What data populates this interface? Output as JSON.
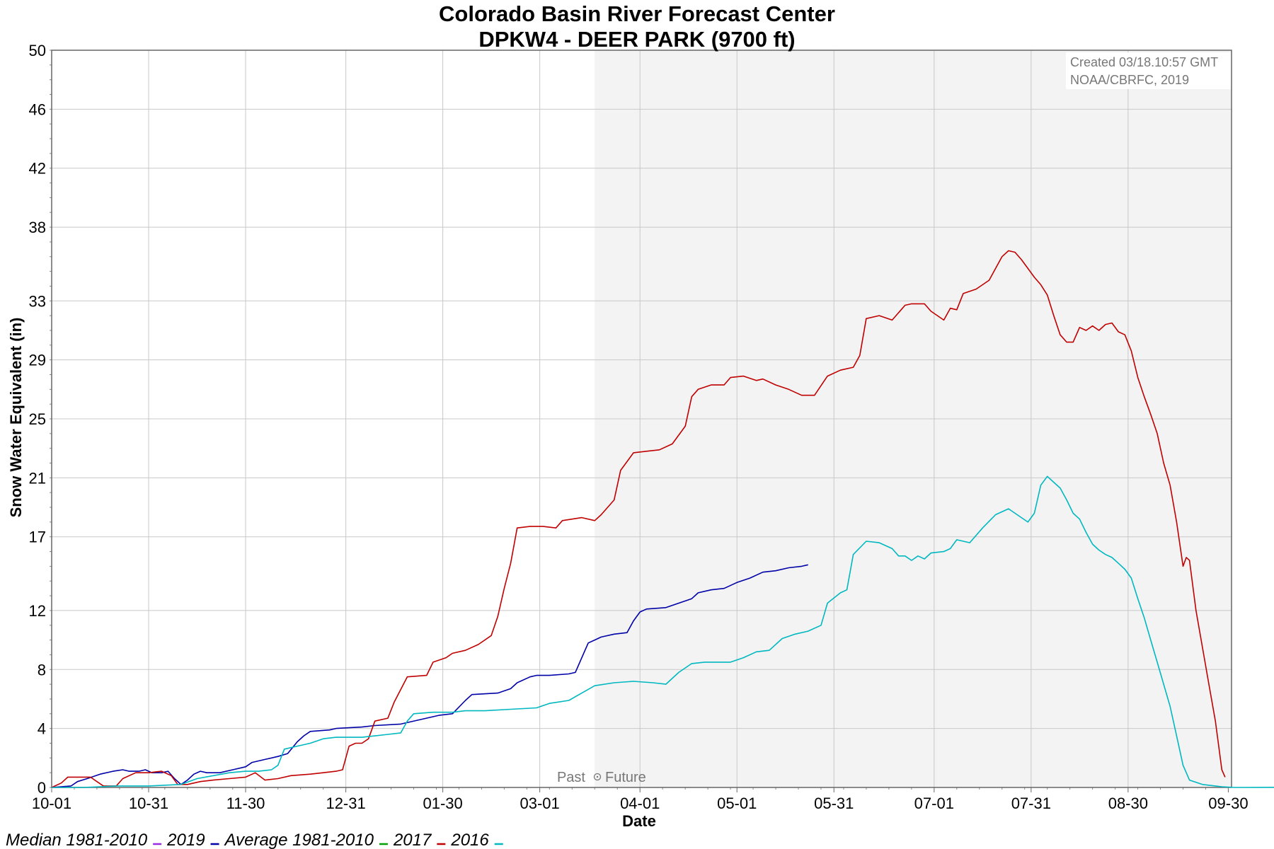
{
  "chart_data": {
    "type": "line",
    "title": "Colorado Basin River Forecast Center",
    "subtitle": "DPKW4 - DEER PARK (9700 ft)",
    "xlabel": "Date",
    "ylabel": "Snow Water Equivalent (in)",
    "ylim": [
      0,
      50
    ],
    "y_ticks": [
      0,
      4,
      8,
      12,
      17,
      21,
      25,
      29,
      33,
      38,
      42,
      46,
      50
    ],
    "x_ticks": [
      "10-01",
      "10-31",
      "11-30",
      "12-31",
      "01-30",
      "03-01",
      "04-01",
      "05-01",
      "05-31",
      "07-01",
      "07-31",
      "08-30",
      "09-30"
    ],
    "grid": true,
    "past_label": "Past",
    "future_label": "Future",
    "future_start_day": 168,
    "created_text": "Created 03/18.10:57 GMT",
    "credit_text": "NOAA/CBRFC, 2019",
    "legend": [
      {
        "label": "Median 1981-2010",
        "color": "#9a2be2"
      },
      {
        "label": "2019",
        "color": "#0000a8"
      },
      {
        "label": "Average 1981-2010",
        "color": "#00a000"
      },
      {
        "label": "2017",
        "color": "#c00000"
      },
      {
        "label": "2016",
        "color": "#00b8c0"
      }
    ],
    "series": [
      {
        "name": "2019",
        "color": "#0000a8",
        "points": [
          [
            0,
            0
          ],
          [
            6,
            0.1
          ],
          [
            8,
            0.4
          ],
          [
            11,
            0.6
          ],
          [
            15,
            0.9
          ],
          [
            19,
            1.1
          ],
          [
            22,
            1.2
          ],
          [
            24,
            1.1
          ],
          [
            27,
            1.1
          ],
          [
            29,
            1.2
          ],
          [
            31,
            1.0
          ],
          [
            34,
            1.0
          ],
          [
            36,
            1.1
          ],
          [
            38,
            0.6
          ],
          [
            40,
            0.2
          ],
          [
            42,
            0.5
          ],
          [
            44,
            0.9
          ],
          [
            46,
            1.1
          ],
          [
            48,
            1.0
          ],
          [
            52,
            1.0
          ],
          [
            56,
            1.2
          ],
          [
            60,
            1.4
          ],
          [
            62,
            1.7
          ],
          [
            66,
            1.9
          ],
          [
            70,
            2.1
          ],
          [
            73,
            2.3
          ],
          [
            76,
            3.1
          ],
          [
            78,
            3.5
          ],
          [
            80,
            3.8
          ],
          [
            86,
            3.9
          ],
          [
            88,
            4.0
          ],
          [
            96,
            4.1
          ],
          [
            100,
            4.2
          ],
          [
            108,
            4.3
          ],
          [
            114,
            4.6
          ],
          [
            120,
            4.9
          ],
          [
            124,
            5.0
          ],
          [
            128,
            5.9
          ],
          [
            130,
            6.3
          ],
          [
            138,
            6.4
          ],
          [
            142,
            6.7
          ],
          [
            144,
            7.1
          ],
          [
            148,
            7.5
          ],
          [
            150,
            7.6
          ],
          [
            154,
            7.6
          ],
          [
            160,
            7.7
          ],
          [
            162,
            7.8
          ],
          [
            164,
            8.8
          ],
          [
            166,
            9.8
          ],
          [
            168,
            10.0
          ],
          [
            170,
            10.2
          ],
          [
            174,
            10.4
          ],
          [
            178,
            10.5
          ],
          [
            180,
            11.3
          ],
          [
            182,
            11.9
          ],
          [
            184,
            12.1
          ],
          [
            190,
            12.2
          ],
          [
            194,
            12.5
          ],
          [
            198,
            12.8
          ],
          [
            200,
            13.2
          ],
          [
            204,
            13.4
          ],
          [
            208,
            13.5
          ],
          [
            212,
            13.9
          ],
          [
            216,
            14.2
          ],
          [
            220,
            14.6
          ],
          [
            224,
            14.7
          ],
          [
            228,
            14.9
          ],
          [
            232,
            15.0
          ],
          [
            234,
            15.1
          ]
        ]
      },
      {
        "name": "2017",
        "color": "#c00000",
        "points": [
          [
            0,
            0
          ],
          [
            3,
            0.3
          ],
          [
            5,
            0.7
          ],
          [
            8,
            0.7
          ],
          [
            12,
            0.7
          ],
          [
            14,
            0.4
          ],
          [
            16,
            0.1
          ],
          [
            20,
            0.1
          ],
          [
            22,
            0.6
          ],
          [
            26,
            1.0
          ],
          [
            30,
            1.0
          ],
          [
            34,
            1.1
          ],
          [
            37,
            0.8
          ],
          [
            39,
            0.2
          ],
          [
            42,
            0.2
          ],
          [
            46,
            0.4
          ],
          [
            50,
            0.5
          ],
          [
            55,
            0.6
          ],
          [
            60,
            0.7
          ],
          [
            63,
            1.0
          ],
          [
            66,
            0.5
          ],
          [
            70,
            0.6
          ],
          [
            74,
            0.8
          ],
          [
            80,
            0.9
          ],
          [
            84,
            1.0
          ],
          [
            88,
            1.1
          ],
          [
            90,
            1.2
          ],
          [
            92,
            2.8
          ],
          [
            94,
            3.0
          ],
          [
            96,
            3.0
          ],
          [
            98,
            3.3
          ],
          [
            100,
            4.5
          ],
          [
            104,
            4.7
          ],
          [
            106,
            5.8
          ],
          [
            110,
            7.5
          ],
          [
            116,
            7.6
          ],
          [
            118,
            8.5
          ],
          [
            122,
            8.8
          ],
          [
            124,
            9.1
          ],
          [
            128,
            9.3
          ],
          [
            132,
            9.7
          ],
          [
            136,
            10.3
          ],
          [
            138,
            11.6
          ],
          [
            140,
            13.5
          ],
          [
            142,
            15.2
          ],
          [
            144,
            17.6
          ],
          [
            148,
            17.7
          ],
          [
            152,
            17.7
          ],
          [
            156,
            17.6
          ],
          [
            158,
            18.1
          ],
          [
            164,
            18.3
          ],
          [
            168,
            18.1
          ],
          [
            170,
            18.5
          ],
          [
            174,
            19.5
          ],
          [
            176,
            21.5
          ],
          [
            180,
            22.7
          ],
          [
            184,
            22.8
          ],
          [
            188,
            22.9
          ],
          [
            192,
            23.3
          ],
          [
            196,
            24.5
          ],
          [
            198,
            26.5
          ],
          [
            200,
            27.0
          ],
          [
            204,
            27.3
          ],
          [
            208,
            27.3
          ],
          [
            210,
            27.8
          ],
          [
            214,
            27.9
          ],
          [
            218,
            27.6
          ],
          [
            220,
            27.7
          ],
          [
            224,
            27.3
          ],
          [
            228,
            27.0
          ],
          [
            232,
            26.6
          ],
          [
            236,
            26.6
          ],
          [
            240,
            27.9
          ],
          [
            244,
            28.3
          ],
          [
            248,
            28.5
          ],
          [
            250,
            29.3
          ],
          [
            252,
            31.8
          ],
          [
            256,
            32.0
          ],
          [
            260,
            31.7
          ],
          [
            264,
            32.7
          ],
          [
            266,
            32.8
          ],
          [
            270,
            32.8
          ],
          [
            272,
            32.3
          ],
          [
            276,
            31.7
          ],
          [
            278,
            32.5
          ],
          [
            280,
            32.4
          ],
          [
            282,
            33.5
          ],
          [
            286,
            33.8
          ],
          [
            290,
            34.4
          ],
          [
            294,
            36.0
          ],
          [
            296,
            36.4
          ],
          [
            298,
            36.3
          ],
          [
            300,
            35.8
          ],
          [
            302,
            35.2
          ],
          [
            304,
            34.6
          ],
          [
            306,
            34.1
          ],
          [
            308,
            33.4
          ],
          [
            310,
            32.0
          ],
          [
            312,
            30.7
          ],
          [
            314,
            30.2
          ],
          [
            316,
            30.2
          ],
          [
            318,
            31.2
          ],
          [
            320,
            31.0
          ],
          [
            322,
            31.3
          ],
          [
            324,
            31.0
          ],
          [
            326,
            31.4
          ],
          [
            328,
            31.5
          ],
          [
            330,
            30.9
          ],
          [
            332,
            30.7
          ],
          [
            334,
            29.6
          ],
          [
            336,
            27.8
          ],
          [
            338,
            26.5
          ],
          [
            340,
            25.3
          ],
          [
            342,
            24.0
          ],
          [
            344,
            22.0
          ],
          [
            346,
            20.5
          ],
          [
            348,
            18.0
          ],
          [
            350,
            15.0
          ],
          [
            351,
            15.6
          ],
          [
            352,
            15.4
          ],
          [
            354,
            12.0
          ],
          [
            356,
            9.5
          ],
          [
            358,
            7.0
          ],
          [
            360,
            4.5
          ],
          [
            362,
            1.2
          ],
          [
            363,
            0.7
          ]
        ]
      },
      {
        "name": "2016",
        "color": "#00b8c0",
        "points": [
          [
            0,
            0
          ],
          [
            10,
            0
          ],
          [
            20,
            0.1
          ],
          [
            30,
            0.1
          ],
          [
            40,
            0.2
          ],
          [
            45,
            0.6
          ],
          [
            50,
            0.8
          ],
          [
            55,
            1.0
          ],
          [
            60,
            1.1
          ],
          [
            64,
            1.1
          ],
          [
            68,
            1.2
          ],
          [
            70,
            1.5
          ],
          [
            72,
            2.6
          ],
          [
            76,
            2.8
          ],
          [
            80,
            3.0
          ],
          [
            84,
            3.3
          ],
          [
            88,
            3.4
          ],
          [
            92,
            3.4
          ],
          [
            96,
            3.4
          ],
          [
            100,
            3.5
          ],
          [
            104,
            3.6
          ],
          [
            108,
            3.7
          ],
          [
            110,
            4.5
          ],
          [
            112,
            5.0
          ],
          [
            118,
            5.1
          ],
          [
            124,
            5.1
          ],
          [
            128,
            5.2
          ],
          [
            134,
            5.2
          ],
          [
            142,
            5.3
          ],
          [
            150,
            5.4
          ],
          [
            154,
            5.7
          ],
          [
            160,
            5.9
          ],
          [
            164,
            6.4
          ],
          [
            168,
            6.9
          ],
          [
            174,
            7.1
          ],
          [
            180,
            7.2
          ],
          [
            186,
            7.1
          ],
          [
            190,
            7.0
          ],
          [
            194,
            7.8
          ],
          [
            198,
            8.4
          ],
          [
            202,
            8.5
          ],
          [
            206,
            8.5
          ],
          [
            210,
            8.5
          ],
          [
            214,
            8.8
          ],
          [
            218,
            9.2
          ],
          [
            222,
            9.3
          ],
          [
            226,
            10.1
          ],
          [
            230,
            10.4
          ],
          [
            234,
            10.6
          ],
          [
            238,
            11.0
          ],
          [
            240,
            12.5
          ],
          [
            244,
            13.2
          ],
          [
            246,
            13.4
          ],
          [
            248,
            15.8
          ],
          [
            252,
            16.7
          ],
          [
            256,
            16.6
          ],
          [
            260,
            16.2
          ],
          [
            262,
            15.7
          ],
          [
            264,
            15.7
          ],
          [
            266,
            15.4
          ],
          [
            268,
            15.7
          ],
          [
            270,
            15.5
          ],
          [
            272,
            15.9
          ],
          [
            276,
            16.0
          ],
          [
            278,
            16.2
          ],
          [
            280,
            16.8
          ],
          [
            284,
            16.6
          ],
          [
            288,
            17.6
          ],
          [
            292,
            18.5
          ],
          [
            296,
            18.9
          ],
          [
            298,
            18.6
          ],
          [
            302,
            18.0
          ],
          [
            304,
            18.6
          ],
          [
            306,
            20.5
          ],
          [
            308,
            21.1
          ],
          [
            310,
            20.7
          ],
          [
            312,
            20.3
          ],
          [
            314,
            19.5
          ],
          [
            316,
            18.6
          ],
          [
            318,
            18.2
          ],
          [
            320,
            17.3
          ],
          [
            322,
            16.5
          ],
          [
            324,
            16.1
          ],
          [
            326,
            15.8
          ],
          [
            328,
            15.6
          ],
          [
            330,
            15.2
          ],
          [
            332,
            14.8
          ],
          [
            334,
            14.2
          ],
          [
            336,
            12.8
          ],
          [
            338,
            11.5
          ],
          [
            340,
            10.0
          ],
          [
            342,
            8.5
          ],
          [
            344,
            7.0
          ],
          [
            346,
            5.5
          ],
          [
            348,
            3.5
          ],
          [
            350,
            1.5
          ],
          [
            352,
            0.5
          ],
          [
            356,
            0.2
          ],
          [
            360,
            0.1
          ],
          [
            362,
            0.05
          ],
          [
            366,
            0
          ],
          [
            440,
            0.05
          ],
          [
            470,
            0.05
          ],
          [
            500,
            0.05
          ],
          [
            540,
            0.1
          ],
          [
            546,
            0.15
          ],
          [
            552,
            0.1
          ],
          [
            560,
            0.1
          ]
        ]
      }
    ]
  }
}
